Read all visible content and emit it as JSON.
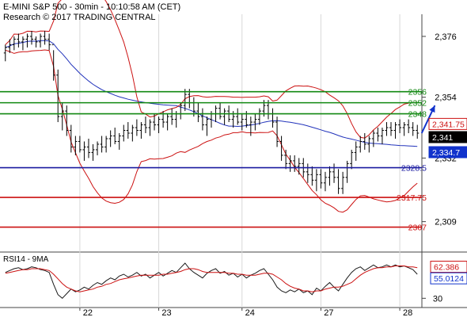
{
  "header": {
    "title": "E-MINI S&P 500 - 30min - 10:10:58 AM (CET)",
    "research": "Research © 2017 TRADING CENTRAL"
  },
  "chart_data": [
    {
      "type": "candlestick",
      "title": "E-MINI S&P 500 - 30min - 10:10:58 AM (CET)",
      "ylim": [
        2298,
        2384
      ],
      "y_ticks": [
        {
          "label": "2,376",
          "value": 2376
        },
        {
          "label": "2,354",
          "value": 2354
        },
        {
          "label": "2,332",
          "value": 2332
        },
        {
          "label": "2,309",
          "value": 2309
        }
      ],
      "x_ticks": [
        {
          "label": "22",
          "index": 17
        },
        {
          "label": "23",
          "index": 35
        },
        {
          "label": "24",
          "index": 54
        },
        {
          "label": "27",
          "index": 72
        },
        {
          "label": "28",
          "index": 90
        }
      ],
      "levels": [
        {
          "label": "2356",
          "value": 2356,
          "color": "#118811"
        },
        {
          "label": "2352",
          "value": 2352,
          "color": "#118811"
        },
        {
          "label": "2348",
          "value": 2348,
          "color": "#118811"
        },
        {
          "label": "2328.5",
          "value": 2328.5,
          "color": "#1a1aa0"
        },
        {
          "label": "2317.75",
          "value": 2317.75,
          "color": "#cc1111"
        },
        {
          "label": "2307",
          "value": 2307,
          "color": "#cc1111"
        }
      ],
      "price_tags": [
        {
          "label": "2,341.75",
          "value": 2341.75,
          "style": "outline-red"
        },
        {
          "label": "2,341",
          "value": 2341,
          "style": "filled-black"
        },
        {
          "label": "2,334.7",
          "value": 2334.7,
          "style": "filled-blue"
        }
      ],
      "arrow": {
        "from": [
          95,
          2341
        ],
        "to": [
          98,
          2351
        ]
      },
      "bars": [
        [
          2370,
          2373,
          2367,
          2372
        ],
        [
          2372,
          2375,
          2370,
          2373
        ],
        [
          2373,
          2376,
          2371,
          2375
        ],
        [
          2375,
          2377,
          2372,
          2374
        ],
        [
          2374,
          2376,
          2371,
          2375
        ],
        [
          2375,
          2377,
          2372,
          2376
        ],
        [
          2376,
          2378,
          2373,
          2375
        ],
        [
          2375,
          2376,
          2372,
          2374
        ],
        [
          2374,
          2377,
          2372,
          2376
        ],
        [
          2376,
          2378,
          2373,
          2375
        ],
        [
          2375,
          2377,
          2371,
          2373
        ],
        [
          2373,
          2371,
          2360,
          2362
        ],
        [
          2362,
          2364,
          2345,
          2347
        ],
        [
          2347,
          2352,
          2342,
          2349
        ],
        [
          2349,
          2351,
          2340,
          2342
        ],
        [
          2342,
          2344,
          2334,
          2336
        ],
        [
          2336,
          2340,
          2333,
          2338
        ],
        [
          2338,
          2340,
          2334,
          2335
        ],
        [
          2335,
          2338,
          2331,
          2336
        ],
        [
          2336,
          2339,
          2332,
          2334
        ],
        [
          2334,
          2337,
          2331,
          2335
        ],
        [
          2335,
          2338,
          2333,
          2337
        ],
        [
          2337,
          2340,
          2334,
          2336
        ],
        [
          2336,
          2340,
          2334,
          2339
        ],
        [
          2339,
          2342,
          2336,
          2340
        ],
        [
          2340,
          2343,
          2337,
          2338
        ],
        [
          2338,
          2341,
          2335,
          2340
        ],
        [
          2340,
          2344,
          2338,
          2342
        ],
        [
          2342,
          2345,
          2339,
          2341
        ],
        [
          2341,
          2344,
          2338,
          2343
        ],
        [
          2343,
          2346,
          2340,
          2342
        ],
        [
          2342,
          2345,
          2339,
          2344
        ],
        [
          2344,
          2347,
          2341,
          2343
        ],
        [
          2343,
          2346,
          2340,
          2345
        ],
        [
          2345,
          2348,
          2342,
          2344
        ],
        [
          2344,
          2347,
          2341,
          2346
        ],
        [
          2346,
          2349,
          2343,
          2345
        ],
        [
          2345,
          2348,
          2342,
          2347
        ],
        [
          2347,
          2350,
          2344,
          2346
        ],
        [
          2346,
          2349,
          2343,
          2348
        ],
        [
          2348,
          2352,
          2346,
          2351
        ],
        [
          2351,
          2357,
          2349,
          2355
        ],
        [
          2355,
          2357,
          2350,
          2352
        ],
        [
          2352,
          2354,
          2347,
          2349
        ],
        [
          2349,
          2352,
          2345,
          2347
        ],
        [
          2347,
          2350,
          2342,
          2344
        ],
        [
          2344,
          2347,
          2340,
          2346
        ],
        [
          2346,
          2349,
          2343,
          2348
        ],
        [
          2348,
          2351,
          2345,
          2350
        ],
        [
          2350,
          2352,
          2346,
          2347
        ],
        [
          2347,
          2350,
          2344,
          2349
        ],
        [
          2349,
          2351,
          2345,
          2346
        ],
        [
          2346,
          2349,
          2343,
          2347
        ],
        [
          2347,
          2350,
          2344,
          2345
        ],
        [
          2345,
          2348,
          2342,
          2346
        ],
        [
          2346,
          2349,
          2343,
          2344
        ],
        [
          2344,
          2347,
          2340,
          2345
        ],
        [
          2345,
          2348,
          2342,
          2346
        ],
        [
          2346,
          2350,
          2344,
          2349
        ],
        [
          2349,
          2353,
          2347,
          2351
        ],
        [
          2351,
          2353,
          2346,
          2348
        ],
        [
          2348,
          2350,
          2343,
          2345
        ],
        [
          2345,
          2347,
          2336,
          2338
        ],
        [
          2338,
          2340,
          2331,
          2333
        ],
        [
          2333,
          2335,
          2328,
          2330
        ],
        [
          2330,
          2333,
          2327,
          2331
        ],
        [
          2331,
          2333,
          2327,
          2329
        ],
        [
          2329,
          2332,
          2326,
          2330
        ],
        [
          2330,
          2332,
          2325,
          2327
        ],
        [
          2327,
          2330,
          2323,
          2326
        ],
        [
          2326,
          2329,
          2322,
          2324
        ],
        [
          2324,
          2328,
          2320,
          2326
        ],
        [
          2326,
          2328,
          2321,
          2323
        ],
        [
          2323,
          2327,
          2320,
          2325
        ],
        [
          2325,
          2329,
          2322,
          2327
        ],
        [
          2327,
          2330,
          2323,
          2325
        ],
        [
          2325,
          2328,
          2319,
          2321
        ],
        [
          2321,
          2327,
          2319,
          2325
        ],
        [
          2325,
          2331,
          2323,
          2330
        ],
        [
          2330,
          2335,
          2328,
          2334
        ],
        [
          2334,
          2338,
          2331,
          2336
        ],
        [
          2336,
          2340,
          2334,
          2338
        ],
        [
          2338,
          2341,
          2335,
          2337
        ],
        [
          2337,
          2340,
          2334,
          2339
        ],
        [
          2339,
          2342,
          2336,
          2341
        ],
        [
          2341,
          2343,
          2338,
          2340
        ],
        [
          2340,
          2343,
          2337,
          2342
        ],
        [
          2342,
          2345,
          2340,
          2343
        ],
        [
          2343,
          2345,
          2340,
          2342
        ],
        [
          2342,
          2345,
          2339,
          2344
        ],
        [
          2344,
          2346,
          2341,
          2343
        ],
        [
          2343,
          2345,
          2340,
          2344
        ],
        [
          2344,
          2346,
          2341,
          2343
        ],
        [
          2343,
          2345,
          2340,
          2342
        ],
        [
          2342,
          2344,
          2339,
          2341
        ]
      ]
    },
    {
      "type": "line",
      "title": "RSI14 - 9MA",
      "ylim": [
        20,
        80
      ],
      "y_ticks": [
        {
          "label": "30",
          "value": 30
        }
      ],
      "value_tags": [
        {
          "label": "62.386",
          "value": 62.386,
          "style": "outline-red"
        },
        {
          "label": "55.0124",
          "value": 55.0124,
          "style": "outline-blue"
        }
      ],
      "series": [
        {
          "color": "#1a1a1a",
          "values": [
            58,
            60,
            62,
            63,
            61,
            62,
            64,
            63,
            61,
            60,
            58,
            45,
            34,
            30,
            35,
            40,
            37,
            39,
            42,
            40,
            44,
            47,
            45,
            49,
            52,
            50,
            54,
            56,
            53,
            55,
            58,
            54,
            56,
            52,
            55,
            58,
            54,
            57,
            60,
            58,
            63,
            68,
            62,
            58,
            55,
            52,
            57,
            60,
            62,
            57,
            59,
            55,
            57,
            53,
            56,
            52,
            55,
            57,
            60,
            62,
            56,
            50,
            42,
            38,
            36,
            39,
            37,
            40,
            36,
            38,
            34,
            41,
            38,
            43,
            47,
            42,
            38,
            45,
            52,
            58,
            62,
            64,
            60,
            63,
            66,
            63,
            64,
            66,
            64,
            66,
            64,
            65,
            63,
            61,
            56
          ]
        },
        {
          "color": "#cc1111",
          "values": [
            57,
            58,
            59,
            60,
            61,
            61,
            62,
            62,
            62,
            61,
            60,
            56,
            51,
            46,
            42,
            40,
            38,
            37,
            38,
            39,
            40,
            42,
            43,
            45,
            46,
            48,
            50,
            51,
            52,
            53,
            54,
            55,
            55,
            55,
            55,
            55,
            56,
            56,
            57,
            58,
            59,
            61,
            62,
            62,
            61,
            59,
            58,
            58,
            58,
            58,
            58,
            57,
            57,
            56,
            56,
            55,
            55,
            55,
            56,
            57,
            57,
            56,
            53,
            50,
            46,
            43,
            41,
            40,
            38,
            38,
            37,
            38,
            38,
            40,
            41,
            42,
            42,
            43,
            45,
            47,
            51,
            55,
            58,
            60,
            62,
            63,
            63,
            64,
            64,
            65,
            65,
            65,
            64,
            64,
            63
          ]
        }
      ]
    }
  ]
}
